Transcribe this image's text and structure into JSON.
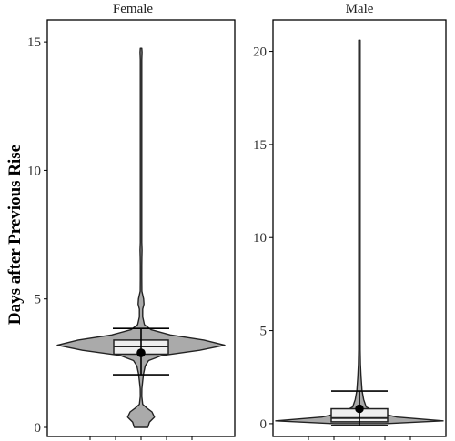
{
  "chart_data": {
    "type": "violin",
    "ylabel": "Days after Previous Rise",
    "xlabel": "",
    "panels": [
      {
        "name": "Female",
        "ylim": [
          0,
          15.5
        ],
        "yticks": [
          0,
          5,
          10,
          15
        ],
        "density": [
          [
            0,
            0.08
          ],
          [
            0.2,
            0.1
          ],
          [
            0.4,
            0.16
          ],
          [
            0.6,
            0.13
          ],
          [
            0.75,
            0.07
          ],
          [
            0.9,
            0.02
          ],
          [
            1.2,
            0.008
          ],
          [
            1.5,
            0.01
          ],
          [
            1.8,
            0.02
          ],
          [
            2.1,
            0.03
          ],
          [
            2.4,
            0.05
          ],
          [
            2.6,
            0.09
          ],
          [
            2.8,
            0.25
          ],
          [
            3.0,
            0.7
          ],
          [
            3.2,
            1.0
          ],
          [
            3.4,
            0.75
          ],
          [
            3.6,
            0.35
          ],
          [
            3.8,
            0.12
          ],
          [
            4.0,
            0.04
          ],
          [
            4.3,
            0.02
          ],
          [
            4.6,
            0.02
          ],
          [
            4.8,
            0.035
          ],
          [
            5.0,
            0.03
          ],
          [
            5.3,
            0.01
          ],
          [
            5.8,
            0.006
          ],
          [
            6.3,
            0.006
          ],
          [
            6.6,
            0.01
          ],
          [
            6.9,
            0.012
          ],
          [
            7.2,
            0.006
          ],
          [
            8.0,
            0.004
          ],
          [
            9.0,
            0.004
          ],
          [
            10.0,
            0.004
          ],
          [
            12.0,
            0.004
          ],
          [
            14.0,
            0.004
          ],
          [
            14.3,
            0.006
          ],
          [
            14.6,
            0.012
          ],
          [
            14.75,
            0.008
          ]
        ],
        "box": {
          "q1": 2.85,
          "median": 3.15,
          "q3": 3.4
        },
        "mean": 2.9,
        "error_bar": [
          2.05,
          3.85
        ]
      },
      {
        "name": "Male",
        "ylim": [
          -0.2,
          21.2
        ],
        "yticks": [
          0,
          5,
          10,
          15,
          20
        ],
        "density": [
          [
            0,
            0.3
          ],
          [
            0.15,
            1.0
          ],
          [
            0.35,
            0.45
          ],
          [
            0.6,
            0.2
          ],
          [
            0.9,
            0.08
          ],
          [
            1.3,
            0.05
          ],
          [
            1.8,
            0.03
          ],
          [
            2.5,
            0.02
          ],
          [
            3.2,
            0.012
          ],
          [
            4.0,
            0.008
          ],
          [
            5.0,
            0.006
          ],
          [
            6.0,
            0.004
          ],
          [
            8.0,
            0.003
          ],
          [
            10.0,
            0.003
          ],
          [
            12.0,
            0.003
          ],
          [
            12.3,
            0.005
          ],
          [
            12.6,
            0.003
          ],
          [
            15.0,
            0.003
          ],
          [
            18.0,
            0.003
          ],
          [
            20.0,
            0.003
          ],
          [
            20.6,
            0.002
          ]
        ],
        "box": {
          "q1": 0.1,
          "median": 0.3,
          "q3": 0.8
        },
        "mean": 0.8,
        "error_bar": [
          -0.1,
          1.75
        ]
      }
    ]
  }
}
